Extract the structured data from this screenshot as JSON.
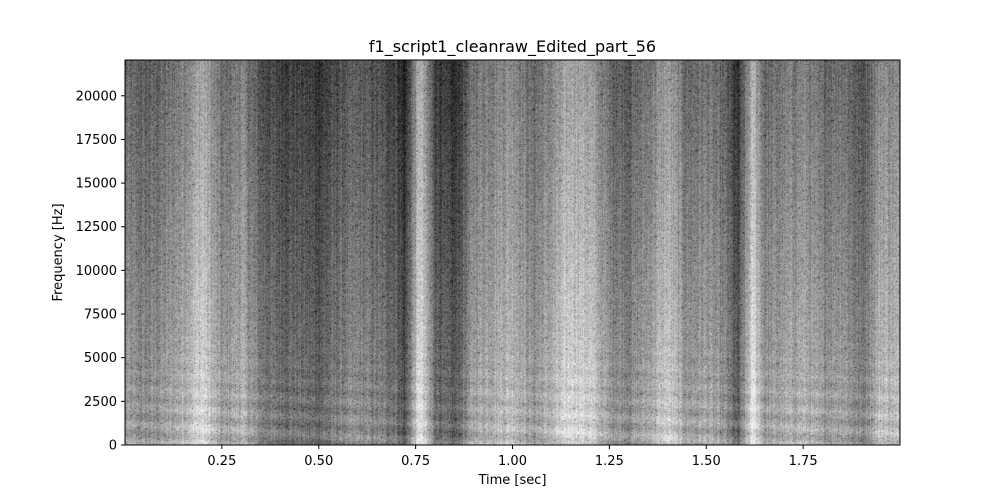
{
  "chart_data": {
    "type": "heatmap",
    "subtype": "spectrogram",
    "title": "f1_script1_cleanraw_Edited_part_56",
    "xlabel": "Time [sec]",
    "ylabel": "Frequency [Hz]",
    "xlim": [
      0.0,
      2.0
    ],
    "ylim": [
      0,
      22050
    ],
    "x_ticks": [
      0.25,
      0.5,
      0.75,
      1.0,
      1.25,
      1.5,
      1.75
    ],
    "x_tick_labels": [
      "0.25",
      "0.50",
      "0.75",
      "1.00",
      "1.25",
      "1.50",
      "1.75"
    ],
    "y_ticks": [
      0,
      2500,
      5000,
      7500,
      10000,
      12500,
      15000,
      17500,
      20000
    ],
    "y_tick_labels": [
      "0",
      "2500",
      "5000",
      "7500",
      "10000",
      "12500",
      "15000",
      "17500",
      "20000"
    ],
    "colormap": "gray",
    "grid": false,
    "intensity_profile": {
      "description_free": true,
      "time_sec": [
        0.0,
        0.05,
        0.1,
        0.15,
        0.2,
        0.25,
        0.3,
        0.35,
        0.4,
        0.45,
        0.5,
        0.55,
        0.6,
        0.65,
        0.7,
        0.72,
        0.76,
        0.8,
        0.85,
        0.9,
        0.95,
        1.0,
        1.05,
        1.1,
        1.15,
        1.2,
        1.25,
        1.3,
        1.35,
        1.4,
        1.45,
        1.5,
        1.55,
        1.58,
        1.62,
        1.65,
        1.7,
        1.75,
        1.8,
        1.85,
        1.9,
        1.95,
        2.0
      ],
      "level": [
        0.45,
        0.4,
        0.45,
        0.55,
        0.7,
        0.45,
        0.55,
        0.35,
        0.3,
        0.3,
        0.25,
        0.35,
        0.4,
        0.35,
        0.3,
        0.15,
        0.75,
        0.3,
        0.2,
        0.5,
        0.55,
        0.6,
        0.45,
        0.55,
        0.7,
        0.65,
        0.45,
        0.4,
        0.5,
        0.65,
        0.45,
        0.5,
        0.4,
        0.2,
        0.75,
        0.45,
        0.5,
        0.55,
        0.45,
        0.5,
        0.35,
        0.6,
        0.55
      ]
    }
  }
}
